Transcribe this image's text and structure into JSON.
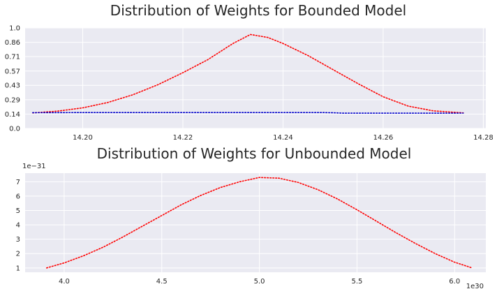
{
  "chart_data": [
    {
      "type": "line",
      "title": "Distribution of Weights for Bounded Model",
      "xlabel": "",
      "ylabel": "",
      "xlim": [
        14.1885,
        14.2805
      ],
      "ylim": [
        0.0,
        1.0
      ],
      "xticks": [
        "14.20",
        "14.22",
        "14.24",
        "14.26",
        "14.28"
      ],
      "xtick_values": [
        14.2,
        14.22,
        14.24,
        14.26,
        14.28
      ],
      "yticks": [
        "0.0",
        "0.14",
        "0.29",
        "0.43",
        "0.57",
        "0.71",
        "0.86",
        "1.0"
      ],
      "ytick_values": [
        0.0,
        0.143,
        0.286,
        0.429,
        0.571,
        0.714,
        0.857,
        1.0
      ],
      "grid": true,
      "series": [
        {
          "color": "#ff0000",
          "style": "dotted",
          "x": [
            14.19,
            14.195,
            14.2,
            14.205,
            14.21,
            14.215,
            14.22,
            14.225,
            14.23,
            14.2335,
            14.237,
            14.24,
            14.245,
            14.25,
            14.255,
            14.26,
            14.265,
            14.27,
            14.276
          ],
          "y": [
            0.155,
            0.172,
            0.205,
            0.258,
            0.335,
            0.435,
            0.555,
            0.685,
            0.845,
            0.935,
            0.905,
            0.845,
            0.725,
            0.585,
            0.445,
            0.315,
            0.222,
            0.175,
            0.155
          ]
        },
        {
          "color": "#0000cc",
          "style": "dotted",
          "x": [
            14.19,
            14.2,
            14.21,
            14.22,
            14.23,
            14.24,
            14.248,
            14.25,
            14.252,
            14.26,
            14.27,
            14.276
          ],
          "y": [
            0.157,
            0.158,
            0.158,
            0.158,
            0.158,
            0.158,
            0.158,
            0.156,
            0.152,
            0.152,
            0.152,
            0.153
          ]
        }
      ]
    },
    {
      "type": "line",
      "title": "Distribution of Weights for Unbounded Model",
      "xlabel": "",
      "ylabel": "",
      "xlim": [
        3.8,
        6.16
      ],
      "ylim": [
        0.7,
        7.6
      ],
      "x_offset_label": "1e30",
      "y_offset_label": "1e−31",
      "xticks": [
        "4.0",
        "4.5",
        "5.0",
        "5.5",
        "6.0"
      ],
      "xtick_values": [
        4.0,
        4.5,
        5.0,
        5.5,
        6.0
      ],
      "yticks": [
        "1",
        "2",
        "3",
        "4",
        "5",
        "6",
        "7"
      ],
      "ytick_values": [
        1,
        2,
        3,
        4,
        5,
        6,
        7
      ],
      "grid": true,
      "series": [
        {
          "color": "#ff0000",
          "style": "dotted",
          "x": [
            3.91,
            4.0,
            4.1,
            4.2,
            4.3,
            4.4,
            4.5,
            4.6,
            4.7,
            4.8,
            4.9,
            5.0,
            5.1,
            5.2,
            5.3,
            5.4,
            5.5,
            5.6,
            5.7,
            5.8,
            5.9,
            6.0,
            6.09
          ],
          "y": [
            1.0,
            1.35,
            1.85,
            2.45,
            3.15,
            3.9,
            4.65,
            5.4,
            6.05,
            6.6,
            7.0,
            7.3,
            7.25,
            6.95,
            6.45,
            5.8,
            5.05,
            4.25,
            3.45,
            2.7,
            2.0,
            1.4,
            1.0
          ]
        }
      ]
    }
  ]
}
